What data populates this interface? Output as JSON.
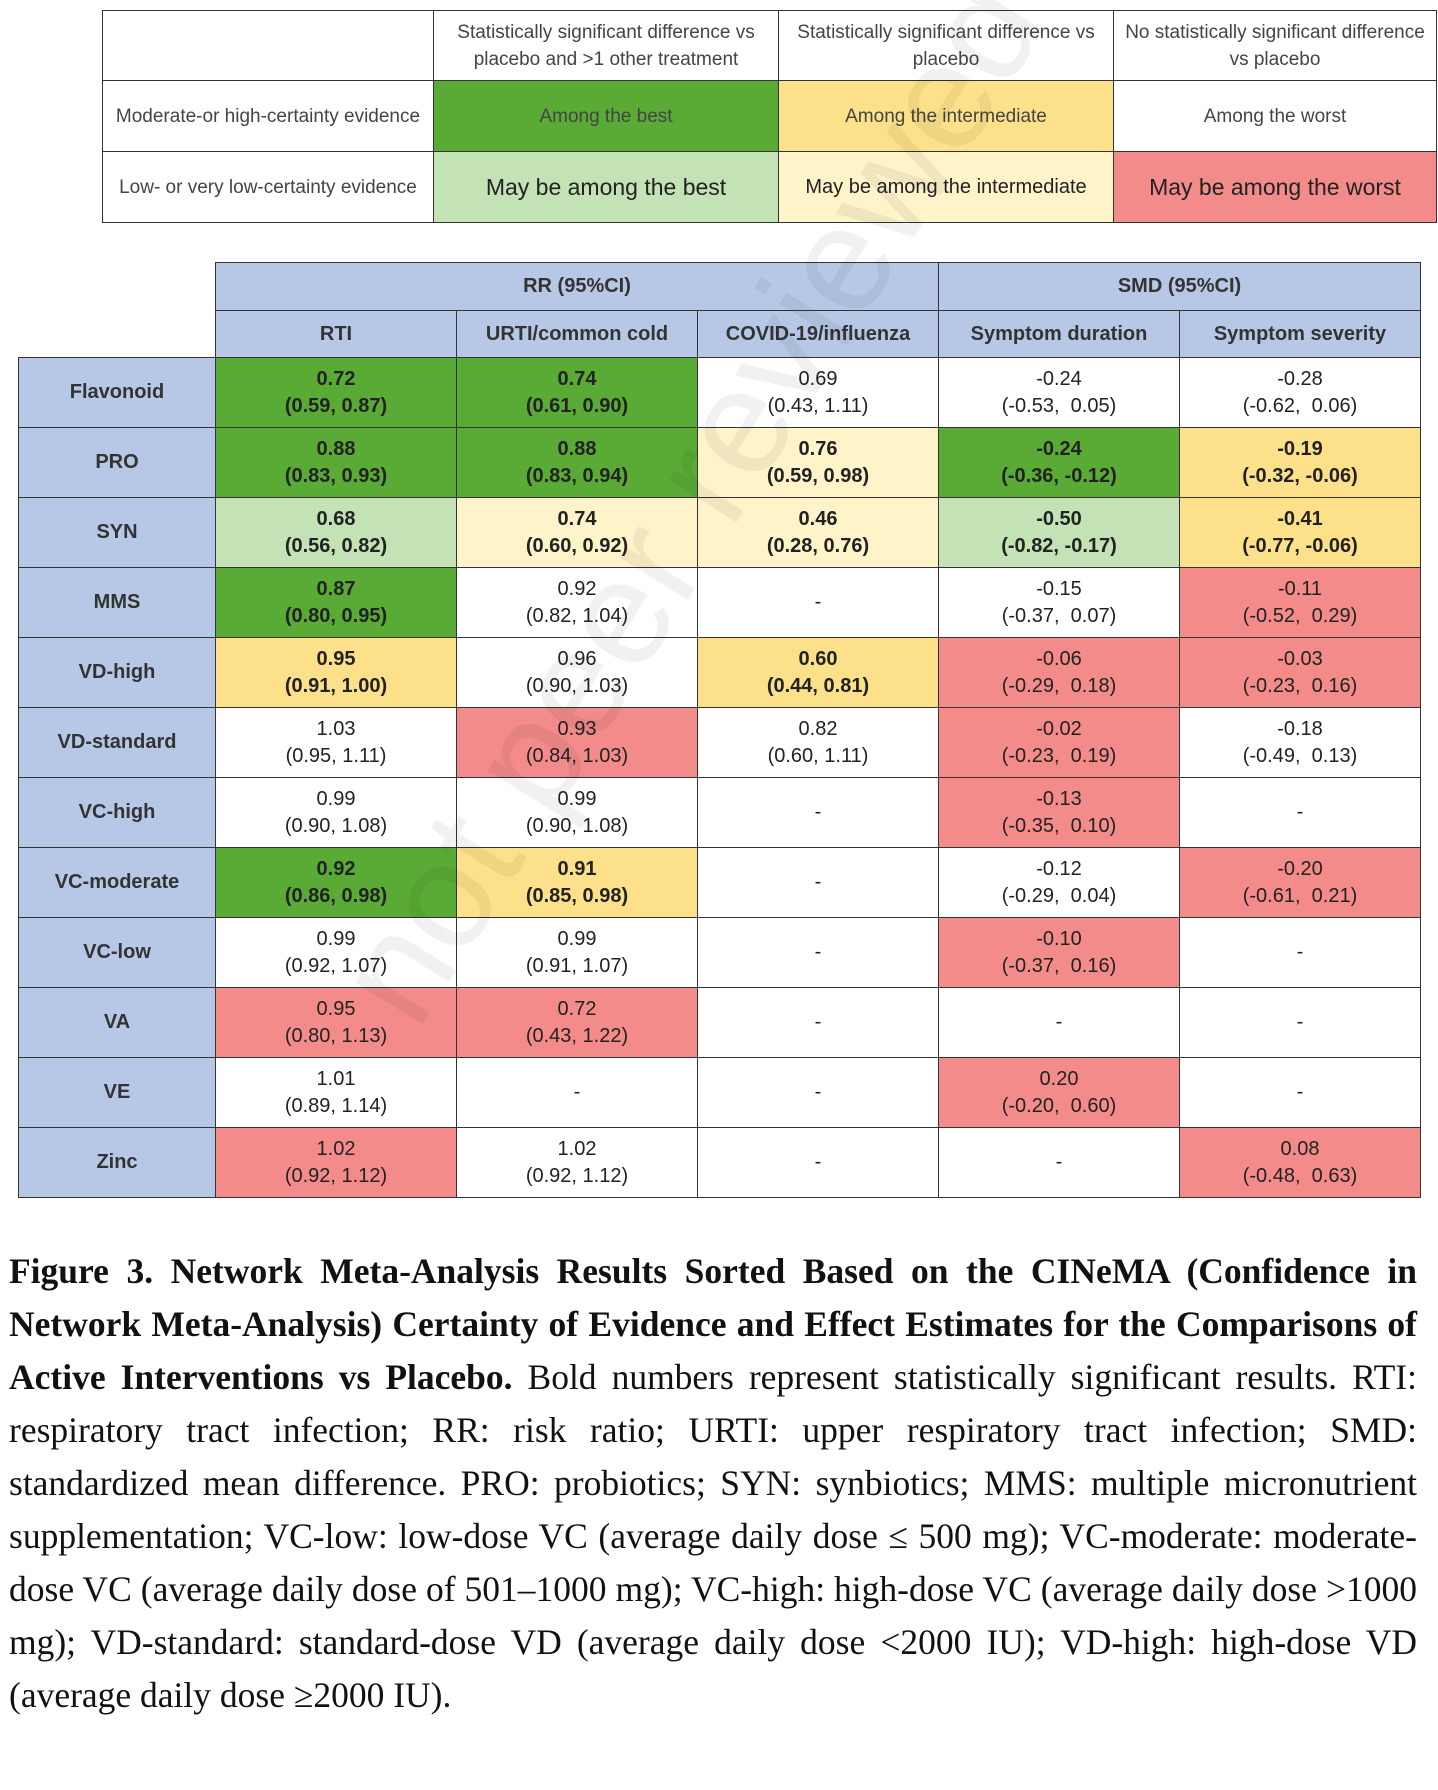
{
  "legend": {
    "headers": [
      "",
      "Statistically significant difference vs placebo and >1 other treatment",
      "Statistically significant difference vs placebo",
      "No statistically significant difference vs placebo"
    ],
    "rows": [
      {
        "label": "Moderate-or high-certainty evidence",
        "cells": [
          "Among the best",
          "Among the intermediate",
          "Among the worst"
        ]
      },
      {
        "label": "Low- or very low-certainty evidence",
        "cells": [
          "May be among the best",
          "May be among the intermediate",
          "May be among the worst"
        ]
      }
    ]
  },
  "results": {
    "group_headers": [
      "RR (95%CI)",
      "SMD (95%CI)"
    ],
    "columns": [
      "RTI",
      "URTI/common cold",
      "COVID-19/influenza",
      "Symptom duration",
      "Symptom severity"
    ],
    "rows": [
      {
        "name": "Flavonoid",
        "cells": [
          {
            "v": "0.72",
            "ci": "(0.59, 0.87)",
            "bold": true,
            "c": "dg"
          },
          {
            "v": "0.74",
            "ci": "(0.61, 0.90)",
            "bold": true,
            "c": "dg"
          },
          {
            "v": "0.69",
            "ci": "(0.43, 1.11)",
            "bold": false,
            "c": "wh"
          },
          {
            "v": "-0.24",
            "ci": "(-0.53,  0.05)",
            "bold": false,
            "c": "wh"
          },
          {
            "v": "-0.28",
            "ci": "(-0.62,  0.06)",
            "bold": false,
            "c": "wh"
          }
        ]
      },
      {
        "name": "PRO",
        "cells": [
          {
            "v": "0.88",
            "ci": "(0.83, 0.93)",
            "bold": true,
            "c": "dg"
          },
          {
            "v": "0.88",
            "ci": "(0.83, 0.94)",
            "bold": true,
            "c": "dg"
          },
          {
            "v": "0.76",
            "ci": "(0.59, 0.98)",
            "bold": true,
            "c": "ly"
          },
          {
            "v": "-0.24",
            "ci": "(-0.36, -0.12)",
            "bold": true,
            "c": "dg"
          },
          {
            "v": "-0.19",
            "ci": "(-0.32, -0.06)",
            "bold": true,
            "c": "dy"
          }
        ]
      },
      {
        "name": "SYN",
        "cells": [
          {
            "v": "0.68",
            "ci": "(0.56, 0.82)",
            "bold": true,
            "c": "lg"
          },
          {
            "v": "0.74",
            "ci": "(0.60, 0.92)",
            "bold": true,
            "c": "ly"
          },
          {
            "v": "0.46",
            "ci": "(0.28, 0.76)",
            "bold": true,
            "c": "ly"
          },
          {
            "v": "-0.50",
            "ci": "(-0.82, -0.17)",
            "bold": true,
            "c": "lg"
          },
          {
            "v": "-0.41",
            "ci": "(-0.77, -0.06)",
            "bold": true,
            "c": "dy"
          }
        ]
      },
      {
        "name": "MMS",
        "cells": [
          {
            "v": "0.87",
            "ci": "(0.80, 0.95)",
            "bold": true,
            "c": "dg"
          },
          {
            "v": "0.92",
            "ci": "(0.82, 1.04)",
            "bold": false,
            "c": "wh"
          },
          {
            "v": "-",
            "ci": "",
            "bold": false,
            "c": "wh"
          },
          {
            "v": "-0.15",
            "ci": "(-0.37,  0.07)",
            "bold": false,
            "c": "wh"
          },
          {
            "v": "-0.11",
            "ci": "(-0.52,  0.29)",
            "bold": false,
            "c": "rd"
          }
        ]
      },
      {
        "name": "VD-high",
        "cells": [
          {
            "v": "0.95",
            "ci": "(0.91, 1.00)",
            "bold": true,
            "c": "dy"
          },
          {
            "v": "0.96",
            "ci": "(0.90, 1.03)",
            "bold": false,
            "c": "wh"
          },
          {
            "v": "0.60",
            "ci": "(0.44, 0.81)",
            "bold": true,
            "c": "dy"
          },
          {
            "v": "-0.06",
            "ci": "(-0.29,  0.18)",
            "bold": false,
            "c": "rd"
          },
          {
            "v": "-0.03",
            "ci": "(-0.23,  0.16)",
            "bold": false,
            "c": "rd"
          }
        ]
      },
      {
        "name": "VD-standard",
        "cells": [
          {
            "v": "1.03",
            "ci": "(0.95, 1.11)",
            "bold": false,
            "c": "wh"
          },
          {
            "v": "0.93",
            "ci": "(0.84, 1.03)",
            "bold": false,
            "c": "rd"
          },
          {
            "v": "0.82",
            "ci": "(0.60, 1.11)",
            "bold": false,
            "c": "wh"
          },
          {
            "v": "-0.02",
            "ci": "(-0.23,  0.19)",
            "bold": false,
            "c": "rd"
          },
          {
            "v": "-0.18",
            "ci": "(-0.49,  0.13)",
            "bold": false,
            "c": "wh"
          }
        ]
      },
      {
        "name": "VC-high",
        "cells": [
          {
            "v": "0.99",
            "ci": "(0.90, 1.08)",
            "bold": false,
            "c": "wh"
          },
          {
            "v": "0.99",
            "ci": "(0.90, 1.08)",
            "bold": false,
            "c": "wh"
          },
          {
            "v": "-",
            "ci": "",
            "bold": false,
            "c": "wh"
          },
          {
            "v": "-0.13",
            "ci": "(-0.35,  0.10)",
            "bold": false,
            "c": "rd"
          },
          {
            "v": "-",
            "ci": "",
            "bold": false,
            "c": "wh"
          }
        ]
      },
      {
        "name": "VC-moderate",
        "cells": [
          {
            "v": "0.92",
            "ci": "(0.86, 0.98)",
            "bold": true,
            "c": "dg"
          },
          {
            "v": "0.91",
            "ci": "(0.85, 0.98)",
            "bold": true,
            "c": "dy"
          },
          {
            "v": "-",
            "ci": "",
            "bold": false,
            "c": "wh"
          },
          {
            "v": "-0.12",
            "ci": "(-0.29,  0.04)",
            "bold": false,
            "c": "wh"
          },
          {
            "v": "-0.20",
            "ci": "(-0.61,  0.21)",
            "bold": false,
            "c": "rd"
          }
        ]
      },
      {
        "name": "VC-low",
        "cells": [
          {
            "v": "0.99",
            "ci": "(0.92, 1.07)",
            "bold": false,
            "c": "wh"
          },
          {
            "v": "0.99",
            "ci": "(0.91, 1.07)",
            "bold": false,
            "c": "wh"
          },
          {
            "v": "-",
            "ci": "",
            "bold": false,
            "c": "wh"
          },
          {
            "v": "-0.10",
            "ci": "(-0.37,  0.16)",
            "bold": false,
            "c": "rd"
          },
          {
            "v": "-",
            "ci": "",
            "bold": false,
            "c": "wh"
          }
        ]
      },
      {
        "name": "VA",
        "cells": [
          {
            "v": "0.95",
            "ci": "(0.80, 1.13)",
            "bold": false,
            "c": "rd"
          },
          {
            "v": "0.72",
            "ci": "(0.43, 1.22)",
            "bold": false,
            "c": "rd"
          },
          {
            "v": "-",
            "ci": "",
            "bold": false,
            "c": "wh"
          },
          {
            "v": "-",
            "ci": "",
            "bold": false,
            "c": "wh"
          },
          {
            "v": "-",
            "ci": "",
            "bold": false,
            "c": "wh"
          }
        ]
      },
      {
        "name": "VE",
        "cells": [
          {
            "v": "1.01",
            "ci": "(0.89, 1.14)",
            "bold": false,
            "c": "wh"
          },
          {
            "v": "-",
            "ci": "",
            "bold": false,
            "c": "wh"
          },
          {
            "v": "-",
            "ci": "",
            "bold": false,
            "c": "wh"
          },
          {
            "v": "0.20",
            "ci": "(-0.20,  0.60)",
            "bold": false,
            "c": "rd"
          },
          {
            "v": "-",
            "ci": "",
            "bold": false,
            "c": "wh"
          }
        ]
      },
      {
        "name": "Zinc",
        "cells": [
          {
            "v": "1.02",
            "ci": "(0.92, 1.12)",
            "bold": false,
            "c": "rd"
          },
          {
            "v": "1.02",
            "ci": "(0.92, 1.12)",
            "bold": false,
            "c": "wh"
          },
          {
            "v": "-",
            "ci": "",
            "bold": false,
            "c": "wh"
          },
          {
            "v": "-",
            "ci": "",
            "bold": false,
            "c": "wh"
          },
          {
            "v": "0.08",
            "ci": "(-0.48,  0.63)",
            "bold": false,
            "c": "rd"
          }
        ]
      }
    ]
  },
  "colors": {
    "dg": "#5aab36",
    "lg": "#c3e2b5",
    "dy": "#fde18a",
    "ly": "#fef3c9",
    "rd": "#f38b8b",
    "header": "#b6c8e6"
  },
  "caption": {
    "title": "Figure 3. Network Meta-Analysis Results Sorted Based on the CINeMA (Confidence in Network Meta-Analysis) Certainty of Evidence and Effect Estimates for the Comparisons of Active Interventions vs Placebo.",
    "body": " Bold numbers represent statistically significant results. RTI: respiratory tract infection; RR: risk ratio; URTI: upper respiratory tract infection; SMD: standardized mean difference. PRO: probiotics; SYN: synbiotics; MMS: multiple micronutrient supplementation; VC-low: low-dose VC (average daily dose ≤ 500 mg); VC-moderate: moderate-dose VC (average daily dose of 501–1000 mg); VC-high: high-dose VC (average daily dose >1000 mg); VD-standard: standard-dose VD (average daily dose <2000 IU); VD-high: high-dose VD (average daily dose ≥2000 IU)."
  },
  "watermark": "not peer reviewed"
}
